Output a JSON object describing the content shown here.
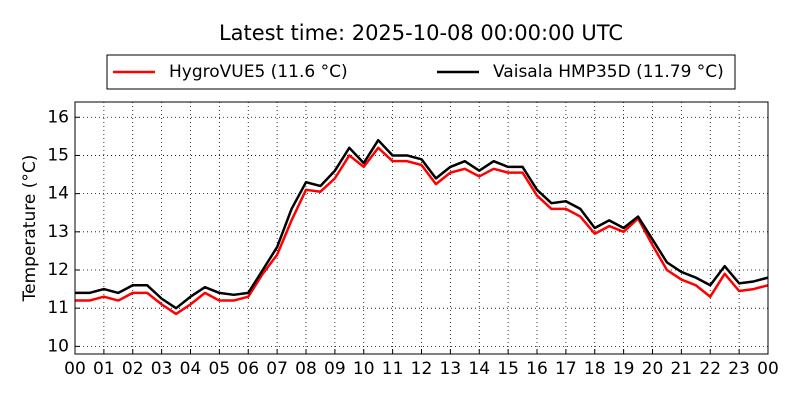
{
  "chart_data": {
    "type": "line",
    "title": "Latest time: 2025-10-08 00:00:00 UTC",
    "y_label": "Temperature (°C)",
    "x": [
      0,
      0.5,
      1,
      1.5,
      2,
      2.5,
      3,
      3.5,
      4,
      4.5,
      5,
      5.5,
      6,
      6.5,
      7,
      7.5,
      8,
      8.5,
      9,
      9.5,
      10,
      10.5,
      11,
      11.5,
      12,
      12.5,
      13,
      13.5,
      14,
      14.5,
      15,
      15.5,
      16,
      16.5,
      17,
      17.5,
      18,
      18.5,
      19,
      19.5,
      20,
      20.5,
      21,
      21.5,
      22,
      22.5,
      23,
      23.5,
      24
    ],
    "series": [
      {
        "name": "HygroVUE5 (11.6 °C)",
        "color": "#ff0000",
        "values": [
          11.2,
          11.2,
          11.3,
          11.2,
          11.4,
          11.4,
          11.1,
          10.85,
          11.1,
          11.4,
          11.2,
          11.2,
          11.3,
          11.9,
          12.4,
          13.3,
          14.1,
          14.05,
          14.4,
          15.0,
          14.7,
          15.2,
          14.85,
          14.85,
          14.75,
          14.25,
          14.55,
          14.65,
          14.45,
          14.65,
          14.55,
          14.55,
          13.95,
          13.6,
          13.6,
          13.4,
          12.95,
          13.15,
          13.0,
          13.35,
          12.65,
          12.0,
          11.75,
          11.6,
          11.3,
          11.9,
          11.45,
          11.5,
          11.6
        ]
      },
      {
        "name": "Vaisala HMP35D (11.79 °C)",
        "color": "#000000",
        "values": [
          11.4,
          11.4,
          11.5,
          11.4,
          11.6,
          11.6,
          11.25,
          11.0,
          11.3,
          11.55,
          11.4,
          11.35,
          11.4,
          12.0,
          12.6,
          13.6,
          14.3,
          14.2,
          14.6,
          15.2,
          14.8,
          15.4,
          15.0,
          15.0,
          14.9,
          14.4,
          14.7,
          14.85,
          14.6,
          14.85,
          14.7,
          14.7,
          14.1,
          13.75,
          13.8,
          13.6,
          13.1,
          13.3,
          13.1,
          13.4,
          12.8,
          12.2,
          11.95,
          11.8,
          11.6,
          12.1,
          11.65,
          11.7,
          11.8
        ]
      }
    ],
    "xlim": [
      0,
      24
    ],
    "xticks": [
      {
        "value": 0,
        "label": "00"
      },
      {
        "value": 1,
        "label": "01"
      },
      {
        "value": 2,
        "label": "02"
      },
      {
        "value": 3,
        "label": "03"
      },
      {
        "value": 4,
        "label": "04"
      },
      {
        "value": 5,
        "label": "05"
      },
      {
        "value": 6,
        "label": "06"
      },
      {
        "value": 7,
        "label": "07"
      },
      {
        "value": 8,
        "label": "08"
      },
      {
        "value": 9,
        "label": "09"
      },
      {
        "value": 10,
        "label": "10"
      },
      {
        "value": 11,
        "label": "11"
      },
      {
        "value": 12,
        "label": "12"
      },
      {
        "value": 13,
        "label": "13"
      },
      {
        "value": 14,
        "label": "14"
      },
      {
        "value": 15,
        "label": "15"
      },
      {
        "value": 16,
        "label": "16"
      },
      {
        "value": 17,
        "label": "17"
      },
      {
        "value": 18,
        "label": "18"
      },
      {
        "value": 19,
        "label": "19"
      },
      {
        "value": 20,
        "label": "20"
      },
      {
        "value": 21,
        "label": "21"
      },
      {
        "value": 22,
        "label": "22"
      },
      {
        "value": 23,
        "label": "23"
      },
      {
        "value": 24,
        "label": "00"
      }
    ],
    "ylim": [
      9.8,
      16.4
    ],
    "yticks": [
      10,
      11,
      12,
      13,
      14,
      15,
      16
    ],
    "grid": true
  }
}
